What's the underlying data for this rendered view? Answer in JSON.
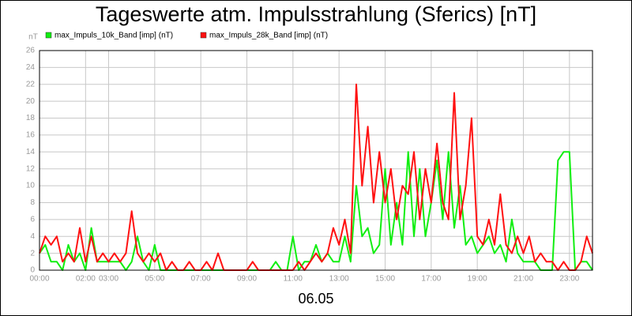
{
  "chart_data": {
    "type": "line",
    "title": "Tageswerte atm. Impulsstrahlung (Sferics) [nT]",
    "y_label": "nT",
    "x_label": "06.05",
    "x": [
      0,
      0.25,
      0.5,
      0.75,
      1,
      1.25,
      1.5,
      1.75,
      2,
      2.25,
      2.5,
      2.75,
      3,
      3.25,
      3.5,
      3.75,
      4,
      4.25,
      4.5,
      4.75,
      5,
      5.25,
      5.5,
      5.75,
      6,
      6.25,
      6.5,
      6.75,
      7,
      7.25,
      7.5,
      7.75,
      8,
      8.25,
      8.5,
      8.75,
      9,
      9.25,
      9.5,
      9.75,
      10,
      10.25,
      10.5,
      10.75,
      11,
      11.25,
      11.5,
      11.75,
      12,
      12.25,
      12.5,
      12.75,
      13,
      13.25,
      13.5,
      13.75,
      14,
      14.25,
      14.5,
      14.75,
      15,
      15.25,
      15.5,
      15.75,
      16,
      16.25,
      16.5,
      16.75,
      17,
      17.25,
      17.5,
      17.75,
      18,
      18.25,
      18.5,
      18.75,
      19,
      19.25,
      19.5,
      19.75,
      20,
      20.25,
      20.5,
      20.75,
      21,
      21.25,
      21.5,
      21.75,
      22,
      22.25,
      22.5,
      22.75,
      23,
      23.25,
      23.5,
      23.75,
      24
    ],
    "series": [
      {
        "name": "max_Impuls_10k_Band [imp] (nT)",
        "color": "#11ee11",
        "values": [
          2,
          3,
          1,
          1,
          0,
          3,
          1,
          2,
          0,
          5,
          1,
          1,
          1,
          1,
          1,
          0,
          1,
          4,
          1,
          0,
          3,
          0,
          0,
          0,
          0,
          0,
          0,
          0,
          0,
          0,
          0,
          0,
          0,
          0,
          0,
          0,
          0,
          0,
          0,
          0,
          0,
          1,
          0,
          0,
          4,
          0,
          1,
          1,
          3,
          1,
          2,
          1,
          1,
          4,
          1,
          10,
          4,
          5,
          2,
          3,
          12,
          3,
          8,
          3,
          14,
          4,
          12,
          4,
          8,
          13,
          6,
          14,
          5,
          10,
          3,
          4,
          2,
          3,
          4,
          2,
          3,
          1,
          6,
          2,
          1,
          1,
          1,
          0,
          0,
          0,
          13,
          14,
          14,
          0,
          1,
          1,
          0
        ]
      },
      {
        "name": "max_Impuls_28k_Band [imp] (nT)",
        "color": "#ff1111",
        "values": [
          2,
          4,
          3,
          4,
          1,
          2,
          1,
          5,
          1,
          4,
          1,
          2,
          1,
          2,
          1,
          2,
          7,
          2,
          1,
          2,
          1,
          2,
          0,
          1,
          0,
          0,
          1,
          0,
          0,
          1,
          0,
          2,
          0,
          0,
          0,
          0,
          0,
          1,
          0,
          0,
          0,
          0,
          0,
          0,
          0,
          1,
          0,
          1,
          2,
          1,
          2,
          5,
          3,
          6,
          2,
          22,
          10,
          17,
          8,
          14,
          8,
          12,
          6,
          10,
          9,
          14,
          6,
          12,
          8,
          15,
          8,
          6,
          21,
          6,
          10,
          18,
          4,
          3,
          6,
          3,
          9,
          3,
          2,
          4,
          2,
          4,
          1,
          2,
          1,
          1,
          0,
          1,
          0,
          0,
          1,
          4,
          2
        ]
      }
    ],
    "xlim": [
      0,
      24
    ],
    "xticks": [
      {
        "value": 0,
        "label": "00:00"
      },
      {
        "value": 2,
        "label": "02:00"
      },
      {
        "value": 3,
        "label": "03:00"
      },
      {
        "value": 5,
        "label": "05:00"
      },
      {
        "value": 7,
        "label": "07:00"
      },
      {
        "value": 9,
        "label": "09:00"
      },
      {
        "value": 11,
        "label": "11:00"
      },
      {
        "value": 13,
        "label": "13:00"
      },
      {
        "value": 15,
        "label": "15:00"
      },
      {
        "value": 17,
        "label": "17:00"
      },
      {
        "value": 19,
        "label": "19:00"
      },
      {
        "value": 21,
        "label": "21:00"
      },
      {
        "value": 23,
        "label": "23:00"
      }
    ],
    "ylim": [
      0,
      26
    ],
    "yticks": [
      0,
      2,
      4,
      6,
      8,
      10,
      12,
      14,
      16,
      18,
      20,
      22,
      24,
      26
    ],
    "grid": true
  }
}
